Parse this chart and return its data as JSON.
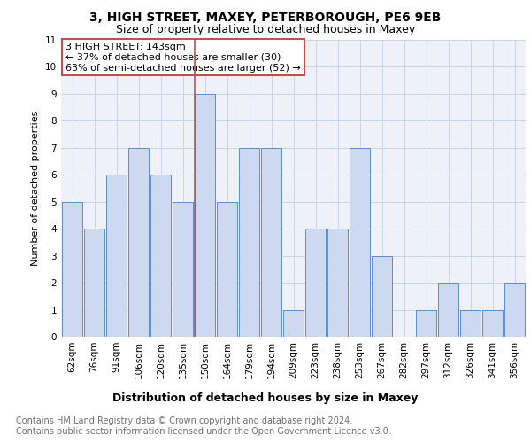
{
  "title": "3, HIGH STREET, MAXEY, PETERBOROUGH, PE6 9EB",
  "subtitle": "Size of property relative to detached houses in Maxey",
  "xlabel": "Distribution of detached houses by size in Maxey",
  "ylabel": "Number of detached properties",
  "categories": [
    "62sqm",
    "76sqm",
    "91sqm",
    "106sqm",
    "120sqm",
    "135sqm",
    "150sqm",
    "164sqm",
    "179sqm",
    "194sqm",
    "209sqm",
    "223sqm",
    "238sqm",
    "253sqm",
    "267sqm",
    "282sqm",
    "297sqm",
    "312sqm",
    "326sqm",
    "341sqm",
    "356sqm"
  ],
  "values": [
    5,
    4,
    6,
    7,
    6,
    5,
    9,
    5,
    7,
    7,
    1,
    4,
    4,
    7,
    3,
    0,
    1,
    2,
    1,
    1,
    2
  ],
  "bar_color": "#ccd9ee",
  "bar_edge_color": "#5b8cc8",
  "highlight_bar_index": 6,
  "highlight_edge_color": "#c0504d",
  "annotation_box_text": "3 HIGH STREET: 143sqm\n← 37% of detached houses are smaller (30)\n63% of semi-detached houses are larger (52) →",
  "annotation_box_color": "white",
  "annotation_box_edge_color": "#c0504d",
  "ylim": [
    0,
    11
  ],
  "yticks": [
    0,
    1,
    2,
    3,
    4,
    5,
    6,
    7,
    8,
    9,
    10,
    11
  ],
  "grid_color": "#c8d4e8",
  "plot_bg_color": "#eef2f8",
  "background_color": "white",
  "footer_text": "Contains HM Land Registry data © Crown copyright and database right 2024.\nContains public sector information licensed under the Open Government Licence v3.0.",
  "title_fontsize": 10,
  "subtitle_fontsize": 9,
  "ylabel_fontsize": 8,
  "xlabel_fontsize": 9,
  "tick_fontsize": 7.5,
  "annotation_fontsize": 8,
  "footer_fontsize": 7
}
